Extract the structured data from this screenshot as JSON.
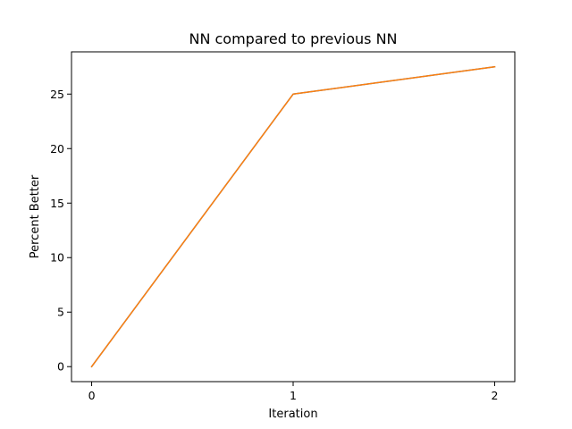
{
  "chart_data": {
    "type": "line",
    "title": "NN compared to previous NN",
    "xlabel": "Iteration",
    "ylabel": "Percent Better",
    "x": [
      0,
      1,
      2
    ],
    "series": [
      {
        "values": [
          0,
          25,
          27.5
        ],
        "color": "#ff7f0e",
        "underlay_color": "#1f77b4"
      }
    ],
    "xlim": [
      -0.1,
      2.1
    ],
    "ylim": [
      -1.375,
      28.875
    ],
    "xticks": [
      0,
      1,
      2
    ],
    "xtick_labels": [
      "0",
      "1",
      "2"
    ],
    "yticks": [
      0,
      5,
      10,
      15,
      20,
      25
    ],
    "ytick_labels": [
      "0",
      "5",
      "10",
      "15",
      "20",
      "25"
    ],
    "grid": false,
    "legend": "none"
  }
}
